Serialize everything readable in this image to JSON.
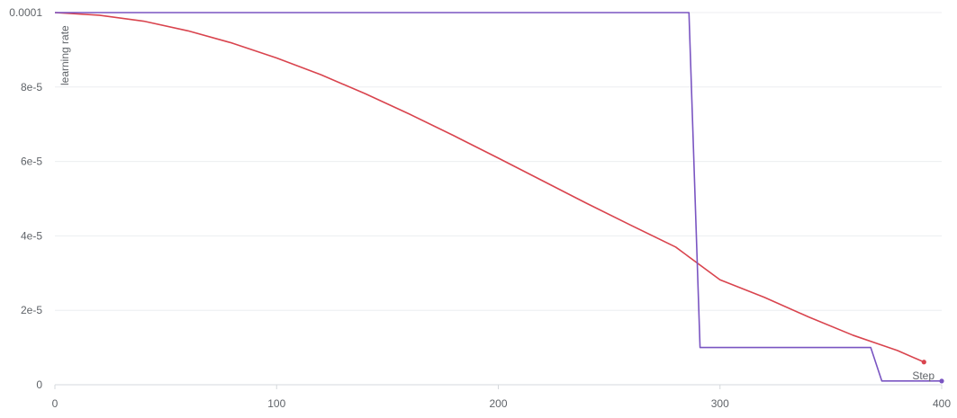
{
  "chart_data": {
    "type": "line",
    "xlabel": "Step",
    "ylabel": "learning rate",
    "xlim": [
      0,
      400
    ],
    "ylim": [
      0,
      0.0001
    ],
    "x_ticks": [
      0,
      100,
      200,
      300,
      400
    ],
    "x_tick_labels": [
      "0",
      "100",
      "200",
      "300",
      "400"
    ],
    "y_ticks": [
      0,
      2e-05,
      4e-05,
      6e-05,
      8e-05,
      0.0001
    ],
    "y_tick_labels": [
      "0",
      "2e-5",
      "4e-5",
      "6e-5",
      "8e-5",
      "0.0001"
    ],
    "grid": true,
    "series": [
      {
        "color": "#d9444e",
        "end_marker": true,
        "points": [
          [
            0,
            0.0001
          ],
          [
            20,
            9.93e-05
          ],
          [
            40,
            9.77e-05
          ],
          [
            60,
            9.51e-05
          ],
          [
            80,
            9.18e-05
          ],
          [
            100,
            8.78e-05
          ],
          [
            120,
            8.33e-05
          ],
          [
            140,
            7.82e-05
          ],
          [
            160,
            7.27e-05
          ],
          [
            180,
            6.69e-05
          ],
          [
            200,
            6.09e-05
          ],
          [
            220,
            5.48e-05
          ],
          [
            240,
            4.87e-05
          ],
          [
            260,
            4.28e-05
          ],
          [
            280,
            3.7e-05
          ],
          [
            300,
            2.82e-05
          ],
          [
            320,
            2.35e-05
          ],
          [
            340,
            1.82e-05
          ],
          [
            360,
            1.33e-05
          ],
          [
            380,
            9.2e-06
          ],
          [
            392,
            6.1e-06
          ]
        ]
      },
      {
        "color": "#7a55c2",
        "end_marker": true,
        "points": [
          [
            0,
            0.0001
          ],
          [
            286,
            0.0001
          ],
          [
            291,
            1e-05
          ],
          [
            368,
            1e-05
          ],
          [
            373,
            1e-06
          ],
          [
            400,
            1e-06
          ]
        ]
      }
    ]
  }
}
